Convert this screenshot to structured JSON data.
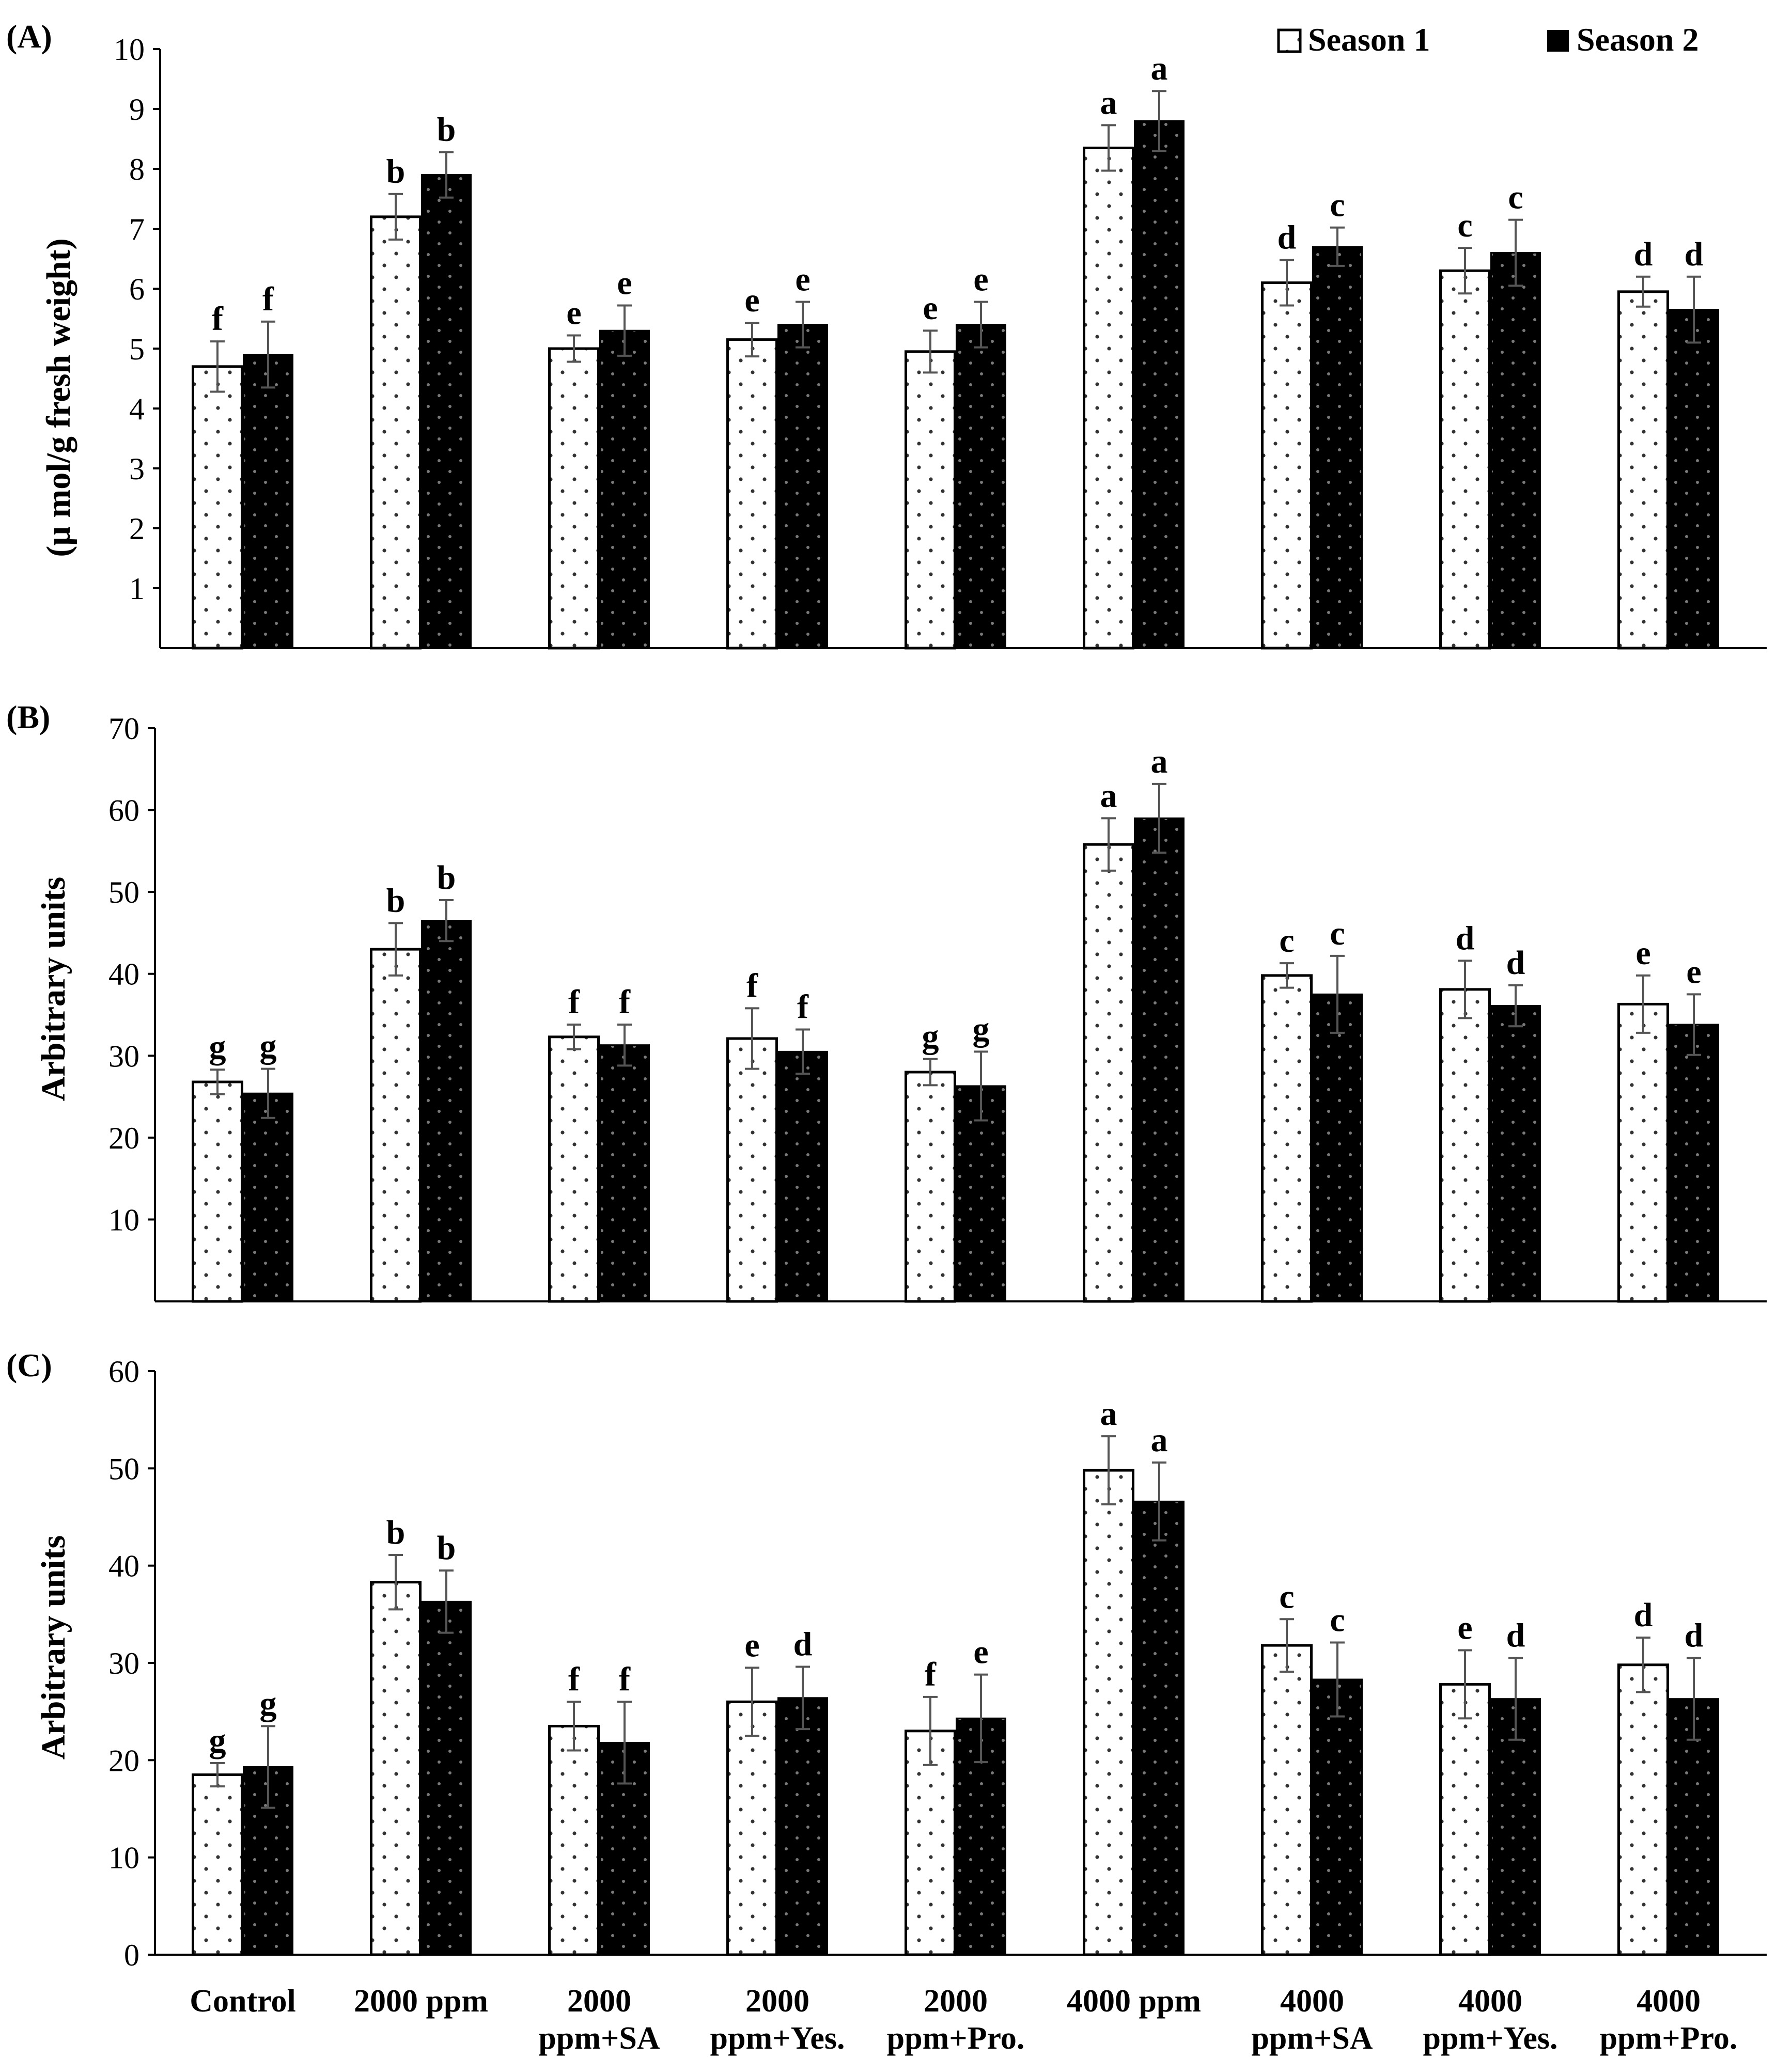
{
  "legend": {
    "season1": "Season 1",
    "season2": "Season 2"
  },
  "categories": [
    [
      "Control"
    ],
    [
      "2000 ppm"
    ],
    [
      "2000",
      "ppm+SA"
    ],
    [
      "2000",
      "ppm+Yes."
    ],
    [
      "2000",
      "ppm+Pro."
    ],
    [
      "4000 ppm"
    ],
    [
      "4000",
      "ppm+SA"
    ],
    [
      "4000",
      "ppm+Yes."
    ],
    [
      "4000",
      "ppm+Pro."
    ]
  ],
  "colors": {
    "season1": "#ffffff",
    "season2": "#000000",
    "axis": "#000000"
  },
  "chart_data": [
    {
      "type": "bar",
      "panel_label": "(A)",
      "ylabel": "(μ mol/g fresh weight)",
      "ylim": [
        0,
        10
      ],
      "yticks": [
        1,
        2,
        3,
        4,
        5,
        6,
        7,
        8,
        9,
        10
      ],
      "series": [
        {
          "name": "Season 1",
          "values": [
            4.7,
            7.2,
            5.0,
            5.15,
            4.95,
            8.35,
            6.1,
            6.3,
            5.95
          ],
          "errors": [
            0.42,
            0.38,
            0.22,
            0.28,
            0.35,
            0.38,
            0.38,
            0.38,
            0.25
          ],
          "letters": [
            "f",
            "b",
            "e",
            "e",
            "e",
            "a",
            "d",
            "c",
            "d"
          ]
        },
        {
          "name": "Season 2",
          "values": [
            4.9,
            7.9,
            5.3,
            5.4,
            5.4,
            8.8,
            6.7,
            6.6,
            5.65
          ],
          "errors": [
            0.55,
            0.38,
            0.42,
            0.38,
            0.38,
            0.5,
            0.32,
            0.55,
            0.55
          ],
          "letters": [
            "f",
            "b",
            "e",
            "e",
            "e",
            "a",
            "c",
            "c",
            "d"
          ]
        }
      ]
    },
    {
      "type": "bar",
      "panel_label": "(B)",
      "ylabel": "Arbitrary units",
      "ylim": [
        0,
        70
      ],
      "yticks": [
        10,
        20,
        30,
        40,
        50,
        60,
        70
      ],
      "series": [
        {
          "name": "Season 1",
          "values": [
            26.8,
            43.0,
            32.3,
            32.1,
            28.0,
            55.8,
            39.8,
            38.1,
            36.3
          ],
          "errors": [
            1.5,
            3.2,
            1.5,
            3.7,
            1.6,
            3.2,
            1.5,
            3.5,
            3.5
          ],
          "letters": [
            "g",
            "b",
            "f",
            "f",
            "g",
            "a",
            "c",
            "d",
            "e"
          ]
        },
        {
          "name": "Season 2",
          "values": [
            25.4,
            46.5,
            31.3,
            30.5,
            26.3,
            59.0,
            37.5,
            36.1,
            33.8
          ],
          "errors": [
            3.0,
            2.5,
            2.5,
            2.7,
            4.2,
            4.2,
            4.7,
            2.5,
            3.7
          ],
          "letters": [
            "g",
            "b",
            "f",
            "f",
            "g",
            "a",
            "c",
            "d",
            "e"
          ]
        }
      ]
    },
    {
      "type": "bar",
      "panel_label": "(C)",
      "ylabel": "Arbitrary units",
      "ylim": [
        0,
        60
      ],
      "yticks": [
        0,
        10,
        20,
        30,
        40,
        50,
        60
      ],
      "series": [
        {
          "name": "Season 1",
          "values": [
            18.5,
            38.3,
            23.5,
            26.0,
            23.0,
            49.8,
            31.8,
            27.8,
            29.8
          ],
          "errors": [
            1.2,
            2.8,
            2.5,
            3.5,
            3.5,
            3.5,
            2.7,
            3.5,
            2.8
          ],
          "letters": [
            "g",
            "b",
            "f",
            "e",
            "f",
            "a",
            "c",
            "e",
            "d"
          ]
        },
        {
          "name": "Season 2",
          "values": [
            19.3,
            36.3,
            21.8,
            26.4,
            24.3,
            46.6,
            28.3,
            26.3,
            26.3
          ],
          "errors": [
            4.2,
            3.2,
            4.2,
            3.2,
            4.5,
            4.0,
            3.8,
            4.2,
            4.2
          ],
          "letters": [
            "g",
            "b",
            "f",
            "d",
            "e",
            "a",
            "c",
            "d",
            "d"
          ]
        }
      ]
    }
  ]
}
